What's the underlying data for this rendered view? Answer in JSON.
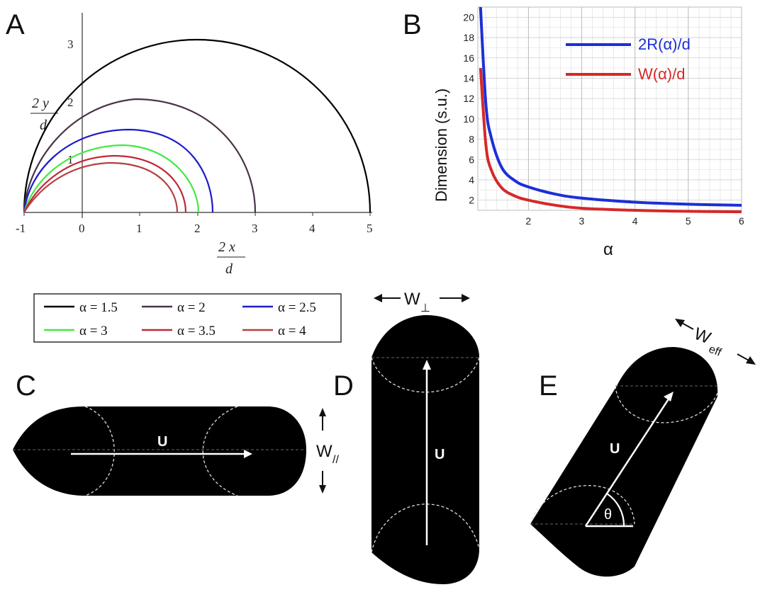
{
  "panels": {
    "A": "A",
    "B": "B",
    "C": "C",
    "D": "D",
    "E": "E"
  },
  "panelA": {
    "xlabel_top": "2 x",
    "xlabel_bottom": "d",
    "ylabel_top": "2 y",
    "ylabel_bottom": "d",
    "x_ticks": [
      "-1",
      "0",
      "1",
      "2",
      "3",
      "4",
      "5"
    ],
    "y_ticks": [
      "1",
      "2",
      "3"
    ],
    "legend": [
      {
        "label": "α = 1.5",
        "color": "#000000"
      },
      {
        "label": "α = 2",
        "color": "#4a3448"
      },
      {
        "label": "α = 2.5",
        "color": "#1c1ccc"
      },
      {
        "label": "α = 3",
        "color": "#44e844"
      },
      {
        "label": "α = 3.5",
        "color": "#c0283a"
      },
      {
        "label": "α = 4",
        "color": "#b84040"
      }
    ]
  },
  "chart_data": {
    "type": "line",
    "xlabel": "α",
    "ylabel": "Dimension (s.u.)",
    "xlim": [
      1.05,
      6
    ],
    "ylim": [
      1,
      21
    ],
    "x_ticks": [
      "2",
      "3",
      "4",
      "5",
      "6"
    ],
    "y_ticks": [
      "2",
      "4",
      "6",
      "8",
      "10",
      "12",
      "14",
      "16",
      "18",
      "20"
    ],
    "grid": true,
    "legend_position": "top-right",
    "series": [
      {
        "name": "2R(α)/d",
        "color": "#1c2fd6",
        "x": [
          1.1,
          1.2,
          1.3,
          1.5,
          1.75,
          2,
          2.5,
          3,
          4,
          5,
          6
        ],
        "y": [
          21,
          11.5,
          8.2,
          5.2,
          3.9,
          3.3,
          2.6,
          2.2,
          1.8,
          1.6,
          1.5
        ]
      },
      {
        "name": "W(α)/d",
        "color": "#d62828",
        "x": [
          1.1,
          1.2,
          1.3,
          1.5,
          1.75,
          2,
          2.5,
          3,
          4,
          5,
          6
        ],
        "y": [
          15,
          7.5,
          5.0,
          3.2,
          2.4,
          2.0,
          1.5,
          1.2,
          1.0,
          0.9,
          0.85
        ]
      }
    ]
  },
  "shapes": {
    "u_label": "U",
    "theta_label": "θ",
    "w_parallel": {
      "main": "W",
      "sub": "//"
    },
    "w_perp": {
      "main": "W",
      "sub": "⊥"
    },
    "w_eff": {
      "main": "W",
      "sub": "eff"
    }
  }
}
